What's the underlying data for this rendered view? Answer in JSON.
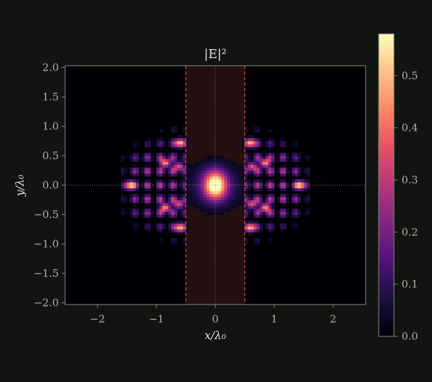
{
  "chart_data": {
    "type": "heatmap",
    "title": "|E|²",
    "xlabel": "x/λ₀",
    "ylabel": "y/λ₀",
    "xlim": [
      -2.55,
      2.55
    ],
    "ylim": [
      -2.03,
      2.03
    ],
    "xticks": [
      -2,
      -1,
      0,
      1,
      2
    ],
    "xtick_labels": [
      "−2",
      "−1",
      "0",
      "1",
      "2"
    ],
    "yticks": [
      2.0,
      1.5,
      1.0,
      0.5,
      0.0,
      -0.5,
      -1.0,
      -1.5,
      -2.0
    ],
    "ytick_labels": [
      "2.0",
      "1.5",
      "1.0",
      "0.5",
      "0.0",
      "−0.5",
      "−1.0",
      "−1.5",
      "−2.0"
    ],
    "colormap": "magma",
    "colorbar": {
      "range": [
        0.0,
        0.58
      ],
      "ticks": [
        0.0,
        0.1,
        0.2,
        0.3,
        0.4,
        0.5
      ],
      "tick_labels": [
        "0.0",
        "0.1",
        "0.2",
        "0.3",
        "0.4",
        "0.5"
      ]
    },
    "slab": {
      "x_range": [
        -0.5,
        0.5
      ],
      "edge_color": "#c8554a",
      "fill_color": "#2a1214"
    },
    "reference_lines": {
      "x": 0,
      "y": 0,
      "style": "dotted"
    },
    "grid": false,
    "features": [
      {
        "x": 0.0,
        "y": 0.0,
        "value": 0.58,
        "sigma_x": 0.13,
        "sigma_y": 0.16
      },
      {
        "x": -0.62,
        "y": 0.32,
        "value": 0.35
      },
      {
        "x": -0.62,
        "y": -0.32,
        "value": 0.35
      },
      {
        "x": 0.62,
        "y": 0.32,
        "value": 0.35
      },
      {
        "x": 0.62,
        "y": -0.32,
        "value": 0.35
      },
      {
        "x": -0.6,
        "y": 0.72,
        "value": 0.5
      },
      {
        "x": -0.6,
        "y": -0.72,
        "value": 0.5
      },
      {
        "x": 0.6,
        "y": 0.72,
        "value": 0.5
      },
      {
        "x": 0.6,
        "y": -0.72,
        "value": 0.5
      },
      {
        "x": -0.85,
        "y": 0.38,
        "value": 0.45
      },
      {
        "x": -0.85,
        "y": -0.38,
        "value": 0.45
      },
      {
        "x": 0.85,
        "y": 0.38,
        "value": 0.45
      },
      {
        "x": 0.85,
        "y": -0.38,
        "value": 0.45
      },
      {
        "x": -1.45,
        "y": 0.0,
        "value": 0.5
      },
      {
        "x": 1.45,
        "y": 0.0,
        "value": 0.5
      }
    ]
  }
}
